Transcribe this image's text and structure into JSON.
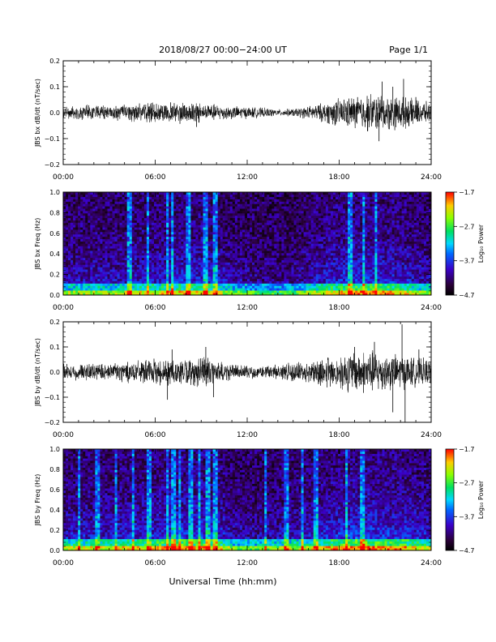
{
  "header": {
    "title": "2018/08/27  00:00−24:00 UT",
    "page": "Page 1/1"
  },
  "xlabel": "Universal Time (hh:mm)",
  "chart_data": [
    {
      "type": "line",
      "ylabel": "JBS bx dB/dt (nT/sec)",
      "xlim": [
        0,
        24
      ],
      "ylim": [
        -0.2,
        0.2
      ],
      "x_ticks": [
        "00:00",
        "06:00",
        "12:00",
        "18:00",
        "24:00"
      ],
      "y_ticks": [
        "0.2",
        "0.1",
        "0.0",
        "−0.1",
        "−0.2"
      ],
      "envelope_x": [
        0,
        1,
        2,
        3,
        4,
        5,
        6,
        7,
        8,
        9,
        10,
        11,
        12,
        13,
        14,
        15,
        16,
        17,
        18,
        19,
        20,
        21,
        22,
        23,
        24
      ],
      "envelope_amp": [
        0.02,
        0.02,
        0.025,
        0.02,
        0.025,
        0.03,
        0.03,
        0.03,
        0.035,
        0.03,
        0.025,
        0.02,
        0.018,
        0.015,
        0.01,
        0.012,
        0.02,
        0.03,
        0.045,
        0.05,
        0.06,
        0.055,
        0.05,
        0.04,
        0.03
      ],
      "spikes": [
        [
          8.7,
          -0.055
        ],
        [
          7.0,
          0.04
        ],
        [
          19.2,
          0.06
        ],
        [
          20.8,
          0.12
        ],
        [
          20.6,
          -0.11
        ],
        [
          22.2,
          0.13
        ],
        [
          21.5,
          0.1
        ],
        [
          23.0,
          0.06
        ]
      ]
    },
    {
      "type": "heatmap",
      "ylabel": "JBS bx Freq (Hz)",
      "xlim": [
        0,
        24
      ],
      "ylim": [
        0,
        1.0
      ],
      "x_ticks": [
        "00:00",
        "06:00",
        "12:00",
        "18:00",
        "24:00"
      ],
      "y_ticks": [
        "1.0",
        "0.8",
        "0.6",
        "0.4",
        "0.2",
        "0.0"
      ],
      "colorbar": {
        "label": "Log₁₀ Power",
        "ticks": [
          "−1.7",
          "−2.7",
          "−3.7",
          "−4.7"
        ],
        "range": [
          -4.7,
          -1.7
        ]
      },
      "activity_x": [
        0,
        1,
        2,
        3,
        4,
        5,
        6,
        7,
        8,
        9,
        10,
        11,
        12,
        13,
        14,
        15,
        16,
        17,
        18,
        19,
        20,
        21,
        22,
        23,
        24
      ],
      "activity_level": [
        0.45,
        0.45,
        0.5,
        0.45,
        0.5,
        0.55,
        0.55,
        0.6,
        0.6,
        0.6,
        0.55,
        0.4,
        0.35,
        0.3,
        0.3,
        0.35,
        0.45,
        0.55,
        0.65,
        0.7,
        0.7,
        0.65,
        0.6,
        0.5,
        0.45
      ],
      "streaks": [
        4.3,
        5.5,
        6.8,
        7.1,
        8.2,
        9.3,
        9.9,
        18.7,
        19.6,
        20.4
      ]
    },
    {
      "type": "line",
      "ylabel": "JBS by dB/dt (nT/sec)",
      "xlim": [
        0,
        24
      ],
      "ylim": [
        -0.2,
        0.2
      ],
      "x_ticks": [
        "00:00",
        "06:00",
        "12:00",
        "18:00",
        "24:00"
      ],
      "y_ticks": [
        "0.2",
        "0.1",
        "0.0",
        "−0.1",
        "−0.2"
      ],
      "envelope_x": [
        0,
        1,
        2,
        3,
        4,
        5,
        6,
        7,
        8,
        9,
        10,
        11,
        12,
        13,
        14,
        15,
        16,
        17,
        18,
        19,
        20,
        21,
        22,
        23,
        24
      ],
      "envelope_amp": [
        0.025,
        0.025,
        0.03,
        0.03,
        0.035,
        0.035,
        0.04,
        0.045,
        0.04,
        0.05,
        0.04,
        0.025,
        0.02,
        0.02,
        0.025,
        0.03,
        0.035,
        0.045,
        0.06,
        0.065,
        0.07,
        0.06,
        0.055,
        0.045,
        0.04
      ],
      "spikes": [
        [
          6.8,
          -0.11
        ],
        [
          7.1,
          0.09
        ],
        [
          9.3,
          0.1
        ],
        [
          9.8,
          -0.1
        ],
        [
          19.0,
          0.1
        ],
        [
          20.3,
          0.12
        ],
        [
          21.5,
          -0.16
        ],
        [
          22.1,
          0.19
        ],
        [
          22.3,
          -0.2
        ],
        [
          23.2,
          0.09
        ]
      ]
    },
    {
      "type": "heatmap",
      "ylabel": "JBS by Freq (Hz)",
      "xlim": [
        0,
        24
      ],
      "ylim": [
        0,
        1.0
      ],
      "x_ticks": [
        "00:00",
        "06:00",
        "12:00",
        "18:00",
        "24:00"
      ],
      "y_ticks": [
        "1.0",
        "0.8",
        "0.6",
        "0.4",
        "0.2",
        "0.0"
      ],
      "colorbar": {
        "label": "Log₁₀ Power",
        "ticks": [
          "−1.7",
          "−2.7",
          "−3.7",
          "−4.7"
        ],
        "range": [
          -4.7,
          -1.7
        ]
      },
      "activity_x": [
        0,
        1,
        2,
        3,
        4,
        5,
        6,
        7,
        8,
        9,
        10,
        11,
        12,
        13,
        14,
        15,
        16,
        17,
        18,
        19,
        20,
        21,
        22,
        23,
        24
      ],
      "activity_level": [
        0.5,
        0.55,
        0.55,
        0.5,
        0.6,
        0.6,
        0.65,
        0.7,
        0.7,
        0.7,
        0.65,
        0.45,
        0.4,
        0.4,
        0.45,
        0.5,
        0.55,
        0.6,
        0.7,
        0.75,
        0.75,
        0.7,
        0.7,
        0.6,
        0.55
      ],
      "streaks": [
        1.0,
        2.2,
        3.4,
        4.6,
        5.6,
        6.8,
        7.2,
        7.6,
        8.3,
        8.9,
        9.4,
        9.9,
        13.2,
        14.6,
        15.6,
        16.5,
        18.5,
        19.5
      ]
    }
  ]
}
